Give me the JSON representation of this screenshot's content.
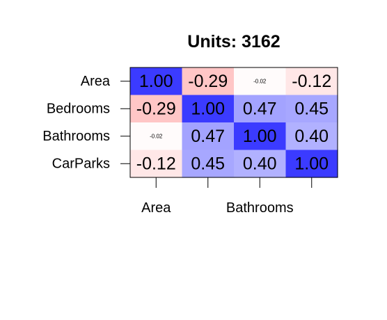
{
  "chart_data": {
    "type": "heatmap",
    "title": "Units: 3162",
    "rows": [
      "Area",
      "Bedrooms",
      "Bathrooms",
      "CarParks"
    ],
    "x_tick_labels": [
      "Area",
      "",
      "Bathrooms",
      ""
    ],
    "matrix": [
      [
        1.0,
        -0.29,
        -0.02,
        -0.12
      ],
      [
        -0.29,
        1.0,
        0.47,
        0.45
      ],
      [
        -0.02,
        0.47,
        1.0,
        0.4
      ],
      [
        -0.12,
        0.45,
        0.4,
        1.0
      ]
    ],
    "cell_labels": [
      [
        "1.00",
        "-0.29",
        "-0.02",
        "-0.12"
      ],
      [
        "-0.29",
        "1.00",
        "0.47",
        "0.45"
      ],
      [
        "-0.02",
        "0.47",
        "1.00",
        "0.40"
      ],
      [
        "-0.12",
        "0.45",
        "0.40",
        "1.00"
      ]
    ],
    "value_range": [
      -1,
      1
    ],
    "colors": {
      "negative": "#ff3b3b",
      "positive": "#3b3bff",
      "zero": "#ffffff"
    },
    "label_size_scales_with_magnitude": true,
    "grid": false,
    "legend": "none"
  }
}
